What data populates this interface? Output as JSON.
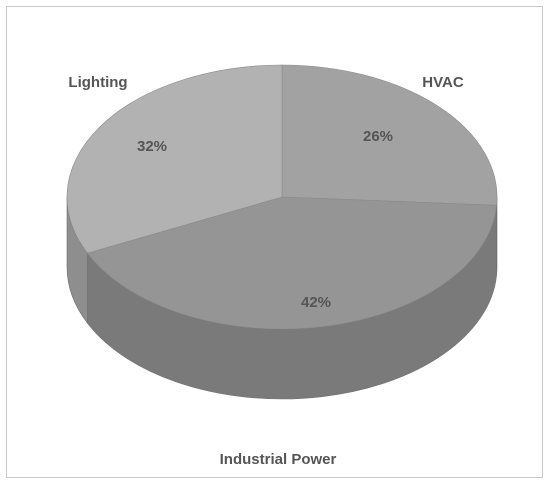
{
  "chart_data": {
    "type": "pie",
    "title": "",
    "categories": [
      "HVAC",
      "Industrial Power",
      "Lighting"
    ],
    "values": [
      26,
      42,
      32
    ],
    "value_labels": [
      "26%",
      "42%",
      "32%"
    ],
    "slice_colors": [
      "#a2a2a2",
      "#959595",
      "#b2b2b2"
    ],
    "side_colors": [
      "#858585",
      "#7a7a7a",
      "#8e8e8e"
    ],
    "style": "3d",
    "legend": "none"
  }
}
